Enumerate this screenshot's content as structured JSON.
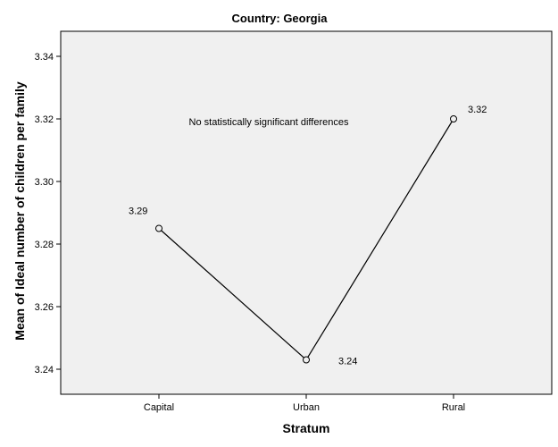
{
  "chart_data": {
    "type": "line",
    "title": "Country: Georgia",
    "xlabel": "Stratum",
    "ylabel": "Mean of Ideal number of children per family",
    "categories": [
      "Capital",
      "Urban",
      "Rural"
    ],
    "values": [
      3.285,
      3.243,
      3.32
    ],
    "data_labels": [
      "3.29",
      "3.24",
      "3.32"
    ],
    "ylim": [
      3.232,
      3.348
    ],
    "yticks": [
      3.24,
      3.26,
      3.28,
      3.3,
      3.32,
      3.34
    ],
    "ytick_labels": [
      "3.24",
      "3.26",
      "3.28",
      "3.30",
      "3.32",
      "3.34"
    ],
    "annotation": "No statistically significant differences",
    "grid": false,
    "marker": "open-circle",
    "colors": {
      "plot_background": "#f0f0f0",
      "line": "#000000",
      "frame": "#000000"
    }
  }
}
